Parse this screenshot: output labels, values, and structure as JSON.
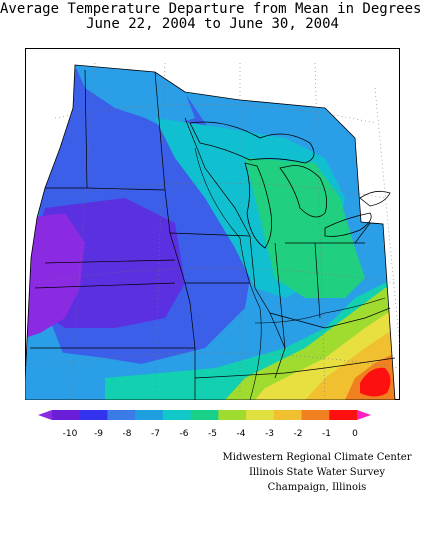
{
  "title": {
    "line1": "Average Temperature Departure from Mean in Degrees F",
    "line2": "June 22, 2004 to June 30, 2004"
  },
  "legend": {
    "ticks": [
      "-10",
      "-9",
      "-8",
      "-7",
      "-6",
      "-5",
      "-4",
      "-3",
      "-2",
      "-1",
      "0"
    ],
    "colors": [
      "#8a2be2",
      "#6a1ed8",
      "#3333ee",
      "#3b7be8",
      "#1ea0e0",
      "#10c8c8",
      "#18d088",
      "#a0dc30",
      "#e0e040",
      "#f0c030",
      "#f08020",
      "#ff1010",
      "#ff20c0"
    ]
  },
  "map": {
    "region": "Midwest US",
    "palette": {
      "deep-purple": "#8a2be2",
      "purple-blue": "#5a30e0",
      "blue": "#3b5fe8",
      "light-blue": "#2a9ee6",
      "cyan": "#10c0d0",
      "teal": "#12d0b0",
      "green": "#20d080",
      "yellow-green": "#a0dc30",
      "yellow": "#e8e040",
      "orange-yellow": "#f0c030",
      "orange": "#f08020",
      "red": "#ff1010"
    }
  },
  "credits": {
    "line1": "Midwestern Regional Climate Center",
    "line2": "Illinois State Water Survey",
    "line3": "Champaign, Illinois"
  }
}
